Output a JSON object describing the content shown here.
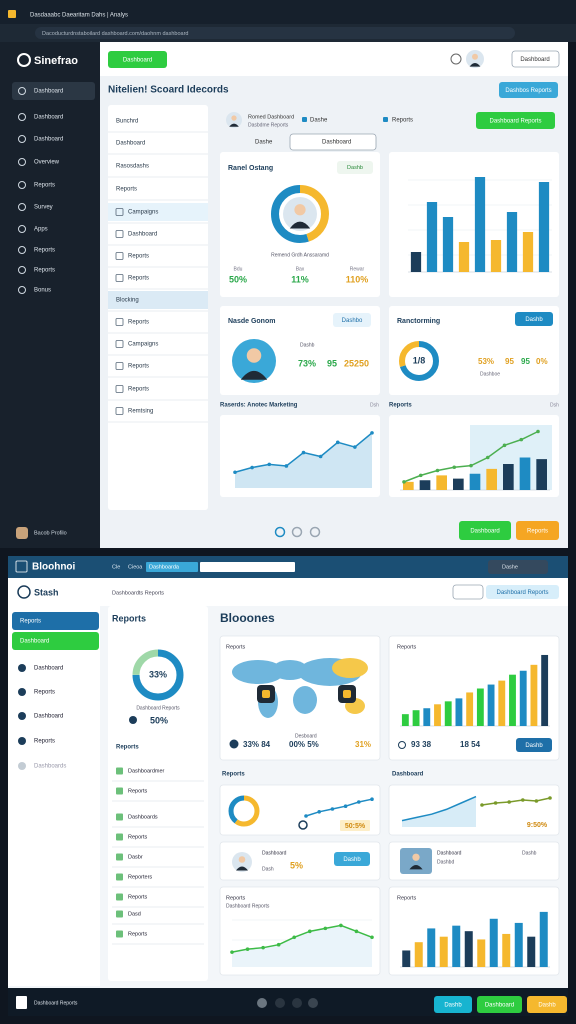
{
  "browser": {
    "tab": "Dasdaaabc Daearitam Dahs | Analys",
    "address": "Dacoducturdnstaboilard dashboard.com/daohnm dashboard"
  },
  "top": {
    "brand": "Sinefrao",
    "sidebar": [
      "Dashboard",
      "Dashboard",
      "Dashboard",
      "Overview",
      "Reports",
      "Survey",
      "Apps",
      "Reports",
      "Reports",
      "Bonus"
    ],
    "profile": "Bacob Profilo",
    "top_button": "Dashboard",
    "account": "Dashboard",
    "title": "Nitelien! Scoard Idecords",
    "title_button": "Dashbos Reports",
    "nav": [
      "Bunchrd",
      "Dashboard",
      "Rasosdashs",
      "Reports",
      "Campaigns",
      "Dashboard",
      "Reports",
      "Reports",
      "Blocking",
      "Reports",
      "Campaigns",
      "Reports",
      "Reports",
      "Remtsing"
    ],
    "user": {
      "name": "Romed Dashboard",
      "sub": "Dasbdme Reports"
    },
    "tabs": [
      "Dashe",
      "Reports",
      "Dashe",
      "Dashboard"
    ],
    "action": "Dashboard Reports",
    "donut_card": {
      "title": "Ranel Ostang",
      "badge": "Dashb",
      "caption": "Remend Grdh Anssaramd",
      "segments": [
        45,
        55
      ],
      "colors": [
        "#f5b82e",
        "#1e8bc3"
      ],
      "stats": [
        {
          "label": "Bdu",
          "value": "50%"
        },
        {
          "label": "Bax",
          "value": "11%"
        },
        {
          "label": "Rewar",
          "value": "110%"
        }
      ]
    },
    "bar_card": {
      "values": [
        20,
        70,
        55,
        30,
        95,
        32,
        60,
        40,
        90
      ],
      "ylim": [
        0,
        100
      ],
      "colors": [
        "#1c3d5a",
        "#1e8bc3",
        "#1e8bc3",
        "#f5b82e",
        "#1e8bc3",
        "#f5b82e",
        "#1e8bc3",
        "#f5b82e",
        "#1e8bc3"
      ]
    },
    "person_card": {
      "title": "Nasde Gonom",
      "button": "Dashbo",
      "label": "Dashb",
      "values": [
        "73%",
        "95",
        "25250"
      ]
    },
    "ring_card": {
      "title": "Ranctorming",
      "button": "Dashb",
      "segments": [
        70,
        30
      ],
      "colors": [
        "#1e8bc3",
        "#f5b82e"
      ],
      "center": "1/8",
      "values": [
        "53%",
        "95",
        "95",
        "0%"
      ],
      "label": "Dashboe"
    },
    "section": [
      "Raserds: Anotec Marketing",
      "Dsh",
      "Reports",
      "Dsh"
    ],
    "line_card": {
      "values": [
        20,
        26,
        30,
        28,
        45,
        40,
        58,
        52,
        70
      ],
      "ylim": [
        0,
        80
      ]
    },
    "trend_card": {
      "bars": [
        10,
        12,
        18,
        14,
        20,
        26,
        32,
        40,
        38
      ],
      "line": [
        10,
        18,
        24,
        28,
        30,
        40,
        55,
        62,
        72
      ],
      "ylim": [
        0,
        80
      ],
      "colors": [
        "#f5b82e",
        "#1c3d5a",
        "#f5b82e",
        "#1c3d5a",
        "#1e8bc3",
        "#f5b82e",
        "#1c3d5a",
        "#1e8bc3",
        "#1c3d5a"
      ]
    },
    "footer_buttons": [
      "Dashboard",
      "Reports"
    ]
  },
  "bottom": {
    "brand": "Bloohnoi",
    "menu": [
      "Cle",
      "Cieoa",
      "Dashboarda"
    ],
    "search": "Dashe",
    "stash": "Stash",
    "crumb": "Dashboardts Reports",
    "right_button": "Dashboard Reports",
    "sidebar": [
      "Reports",
      "Dashboard",
      "Dashboard",
      "Reports",
      "Dashboard",
      "Reports",
      "Dashboards"
    ],
    "panel": {
      "title": "Reports",
      "segments": [
        75,
        25
      ],
      "colors": [
        "#1e8bc3",
        "#9fd8a8"
      ],
      "center": "33%",
      "caption": "Dashboard Reports",
      "value": "50%"
    },
    "list_title": "Reports",
    "list": [
      "Dashboardmer",
      "Reports",
      "Dashboards",
      "Reports",
      "Dasbr",
      "Reporters",
      "Reports",
      "Dasd",
      "Reports"
    ],
    "title": "Blooones",
    "map_card": {
      "title": "Reports",
      "label": "Desboard",
      "stats": [
        "33% 84",
        "00% 5%",
        "31%"
      ]
    },
    "bar_card": {
      "title": "Reports",
      "values": [
        12,
        16,
        18,
        22,
        25,
        28,
        34,
        38,
        42,
        46,
        52,
        56,
        62,
        72
      ],
      "ylim": [
        0,
        75
      ],
      "colors": [
        "#2ecc40",
        "#2ecc40",
        "#1e8bc3",
        "#f5b82e",
        "#2ecc40",
        "#1e8bc3",
        "#f5b82e",
        "#2ecc40",
        "#1e8bc3",
        "#f5b82e",
        "#2ecc40",
        "#1e8bc3",
        "#f5b82e",
        "#1c3d5a"
      ],
      "stats": [
        "93 38",
        "18 54"
      ],
      "button": "Dashb"
    },
    "section": [
      "Reports",
      "Dashboard"
    ],
    "mini1": {
      "segments": [
        60,
        40
      ],
      "colors": [
        "#f5b82e",
        "#1e8bc3"
      ],
      "line": [
        10,
        16,
        20,
        24,
        30,
        34
      ],
      "ylim": [
        0,
        40
      ],
      "value": "50:5%"
    },
    "mini2": {
      "line": [
        8,
        12,
        16,
        22,
        30,
        38
      ],
      "line2": [
        20,
        24,
        26,
        30,
        28,
        34
      ],
      "ylim": [
        0,
        40
      ],
      "value": "9:50%"
    },
    "person1": {
      "name": "Dashboard",
      "sub": "Dash",
      "value": "5%",
      "button": "Dashb"
    },
    "person2": {
      "name": "Dashboard",
      "sub": "Dashbd",
      "value": "Dashb"
    },
    "line_card": {
      "title": "Reports",
      "sub": "Dashboard Reports",
      "values": [
        10,
        12,
        13,
        15,
        20,
        24,
        26,
        28,
        24,
        20
      ],
      "ylim": [
        0,
        35
      ]
    },
    "bar_card2": {
      "title": "Reports",
      "values": [
        12,
        18,
        28,
        22,
        30,
        26,
        20,
        35,
        24,
        32,
        22,
        40
      ],
      "ylim": [
        0,
        45
      ],
      "colors": [
        "#1c3d5a",
        "#f5b82e",
        "#1e8bc3",
        "#f5b82e",
        "#1e8bc3",
        "#1c3d5a",
        "#f5b82e",
        "#1e8bc3",
        "#f5b82e",
        "#1e8bc3",
        "#1c3d5a",
        "#1e8bc3"
      ]
    },
    "footer": {
      "label": "Dashboard Reports",
      "buttons": [
        "Dashb",
        "Dashboard",
        "Dashb"
      ]
    }
  }
}
